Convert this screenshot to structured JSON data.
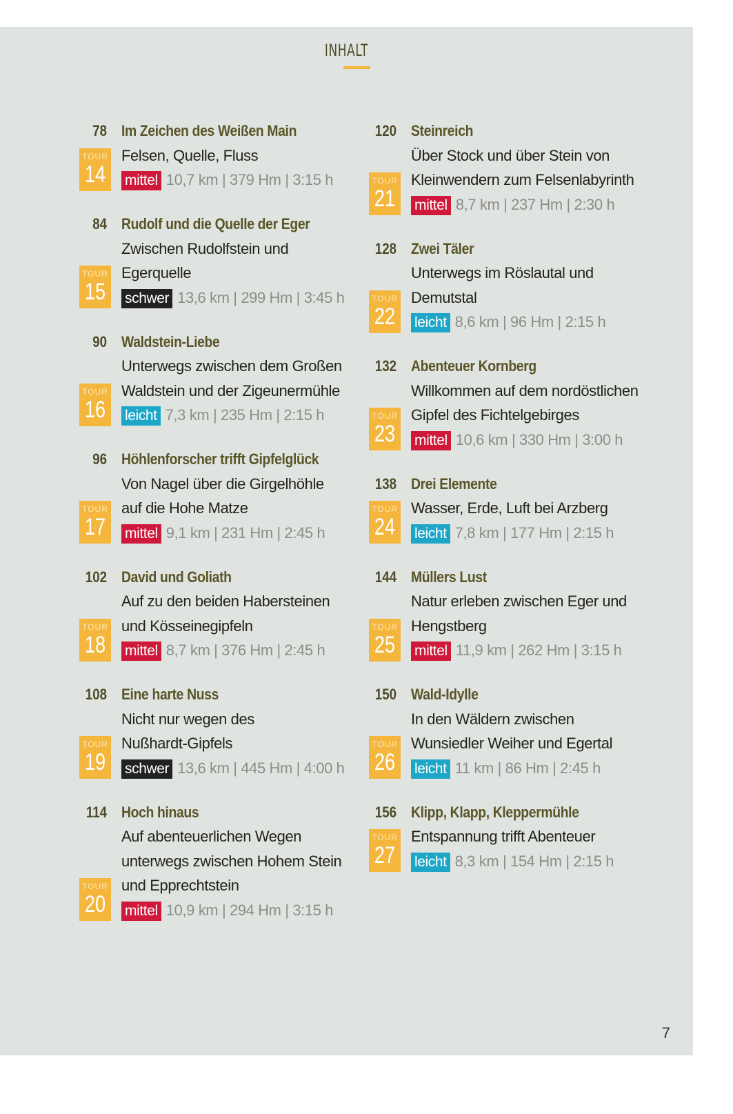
{
  "heading": "INHALT",
  "page_number": "7",
  "tour_label": "TOUR",
  "level_colors": {
    "mittel": "#d0183a",
    "schwer": "#222222",
    "leicht": "#1ea6c8"
  },
  "badge_color": "#f4b63c",
  "columns": [
    [
      {
        "page": "78",
        "tour": "14",
        "title": "Im Zeichen des Weißen Main",
        "subtitle": [
          "Felsen, Quelle, Fluss"
        ],
        "level": "mittel",
        "stats": "10,7 km | 379 Hm | 3:15 h"
      },
      {
        "page": "84",
        "tour": "15",
        "title": "Rudolf und die Quelle der Eger",
        "subtitle": [
          "Zwischen Rudolfstein und",
          "Egerquelle"
        ],
        "level": "schwer",
        "stats": "13,6 km | 299 Hm | 3:45 h"
      },
      {
        "page": "90",
        "tour": "16",
        "title": "Waldstein-Liebe",
        "subtitle": [
          "Unterwegs zwischen dem Großen",
          "Waldstein und der Zigeunermühle"
        ],
        "level": "leicht",
        "stats": "7,3 km | 235 Hm | 2:15 h"
      },
      {
        "page": "96",
        "tour": "17",
        "title": "Höhlenforscher trifft Gipfelglück",
        "subtitle": [
          "Von Nagel über die Girgelhöhle",
          "auf die Hohe Matze"
        ],
        "level": "mittel",
        "stats": "9,1 km | 231 Hm | 2:45 h"
      },
      {
        "page": "102",
        "tour": "18",
        "title": "David und Goliath",
        "subtitle": [
          "Auf zu den beiden Habersteinen",
          "und Kösseinegipfeln"
        ],
        "level": "mittel",
        "stats": "8,7 km | 376 Hm | 2:45 h"
      },
      {
        "page": "108",
        "tour": "19",
        "title": "Eine harte Nuss",
        "subtitle": [
          "Nicht nur wegen des",
          "Nußhardt-Gipfels"
        ],
        "level": "schwer",
        "stats": "13,6 km | 445 Hm | 4:00 h"
      },
      {
        "page": "114",
        "tour": "20",
        "title": "Hoch hinaus",
        "subtitle": [
          "Auf abenteuerlichen Wegen",
          "unterwegs zwischen Hohem Stein",
          "und Epprechtstein"
        ],
        "level": "mittel",
        "stats": "10,9 km | 294 Hm | 3:15 h"
      }
    ],
    [
      {
        "page": "120",
        "tour": "21",
        "title": "Steinreich",
        "subtitle": [
          "Über Stock und über Stein von",
          "Kleinwendern zum Felsenlabyrinth"
        ],
        "level": "mittel",
        "stats": "8,7 km | 237 Hm | 2:30 h"
      },
      {
        "page": "128",
        "tour": "22",
        "title": "Zwei Täler",
        "subtitle": [
          "Unterwegs im Röslautal und",
          "Demutstal"
        ],
        "level": "leicht",
        "stats": "8,6 km | 96 Hm | 2:15 h"
      },
      {
        "page": "132",
        "tour": "23",
        "title": "Abenteuer Kornberg",
        "subtitle": [
          "Willkommen auf dem nordöstlichen",
          "Gipfel des Fichtelgebirges"
        ],
        "level": "mittel",
        "stats": "10,6 km | 330 Hm | 3:00 h"
      },
      {
        "page": "138",
        "tour": "24",
        "title": "Drei Elemente",
        "subtitle": [
          "Wasser, Erde, Luft bei Arzberg"
        ],
        "level": "leicht",
        "stats": "7,8 km | 177 Hm | 2:15 h"
      },
      {
        "page": "144",
        "tour": "25",
        "title": "Müllers Lust",
        "subtitle": [
          "Natur erleben zwischen Eger und",
          "Hengstberg"
        ],
        "level": "mittel",
        "stats": "11,9 km | 262 Hm | 3:15 h"
      },
      {
        "page": "150",
        "tour": "26",
        "title": "Wald-Idylle",
        "subtitle": [
          "In den Wäldern zwischen",
          "Wunsiedler Weiher und Egertal"
        ],
        "level": "leicht",
        "stats": "11 km | 86 Hm | 2:45 h"
      },
      {
        "page": "156",
        "tour": "27",
        "title": "Klipp, Klapp, Kleppermühle",
        "subtitle": [
          "Entspannung trifft Abenteuer"
        ],
        "level": "leicht",
        "stats": "8,3 km | 154 Hm | 2:15 h"
      }
    ]
  ]
}
